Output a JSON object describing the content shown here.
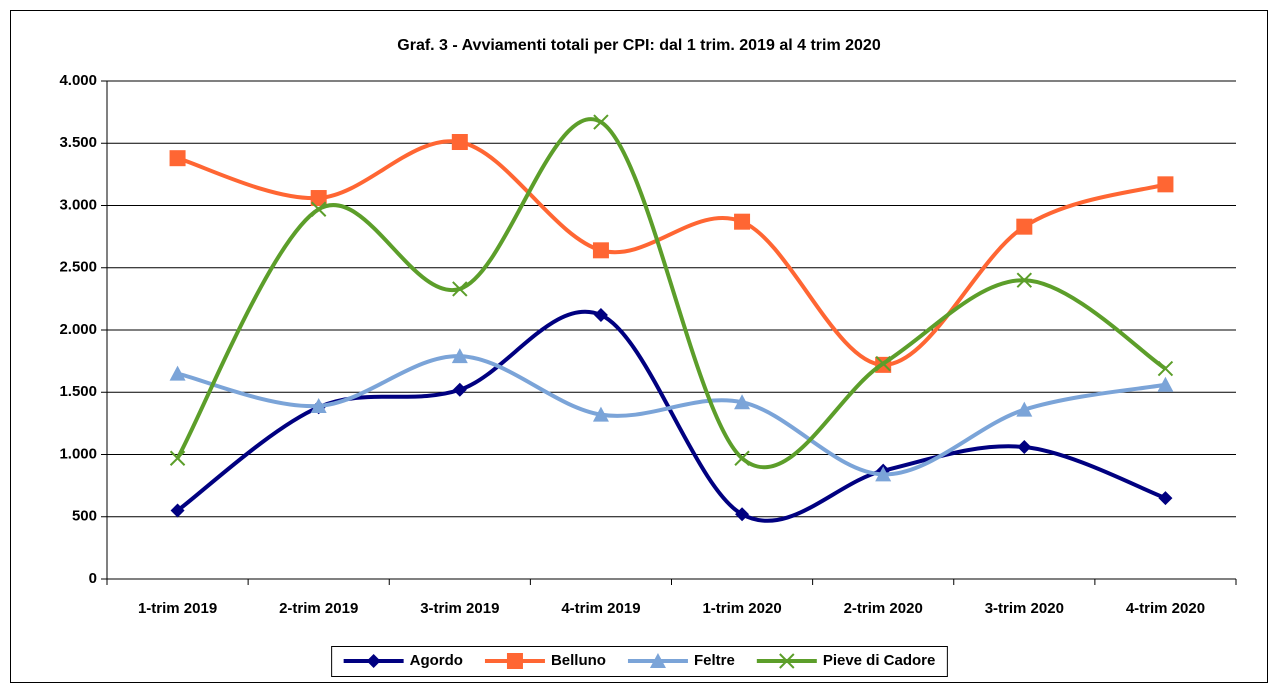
{
  "chart_data": {
    "type": "line",
    "title": "Graf. 3 - Avviamenti totali per CPI: dal 1 trim. 2019 al 4 trim 2020",
    "categories": [
      "1-trim 2019",
      "2-trim 2019",
      "3-trim 2019",
      "4-trim 2019",
      "1-trim 2020",
      "2-trim 2020",
      "3-trim 2020",
      "4-trim 2020"
    ],
    "series": [
      {
        "name": "Agordo",
        "color": "#000080",
        "marker": "diamond",
        "values": [
          550,
          1380,
          1520,
          2120,
          520,
          870,
          1060,
          650
        ]
      },
      {
        "name": "Belluno",
        "color": "#ff6633",
        "marker": "square",
        "values": [
          3380,
          3060,
          3510,
          2640,
          2870,
          1720,
          2830,
          3170
        ]
      },
      {
        "name": "Feltre",
        "color": "#7ba4d8",
        "marker": "triangle",
        "values": [
          1650,
          1390,
          1790,
          1320,
          1420,
          840,
          1360,
          1560
        ]
      },
      {
        "name": "Pieve di Cadore",
        "color": "#5c9e2a",
        "marker": "x",
        "values": [
          970,
          2970,
          2330,
          3670,
          970,
          1730,
          2400,
          1690
        ]
      }
    ],
    "smooth": true,
    "ylim": [
      0,
      4000
    ],
    "yticks": [
      0,
      500,
      {
        "value": 1000,
        "label": "1.000"
      },
      {
        "value": 1500,
        "label": "1.500"
      },
      {
        "value": 2000,
        "label": "2.000"
      },
      {
        "value": 2500,
        "label": "2.500"
      },
      {
        "value": 3000,
        "label": "3.000"
      },
      {
        "value": 3500,
        "label": "3.500"
      },
      {
        "value": 4000,
        "label": "4.000"
      }
    ],
    "grid": true,
    "legend": "bottom"
  }
}
